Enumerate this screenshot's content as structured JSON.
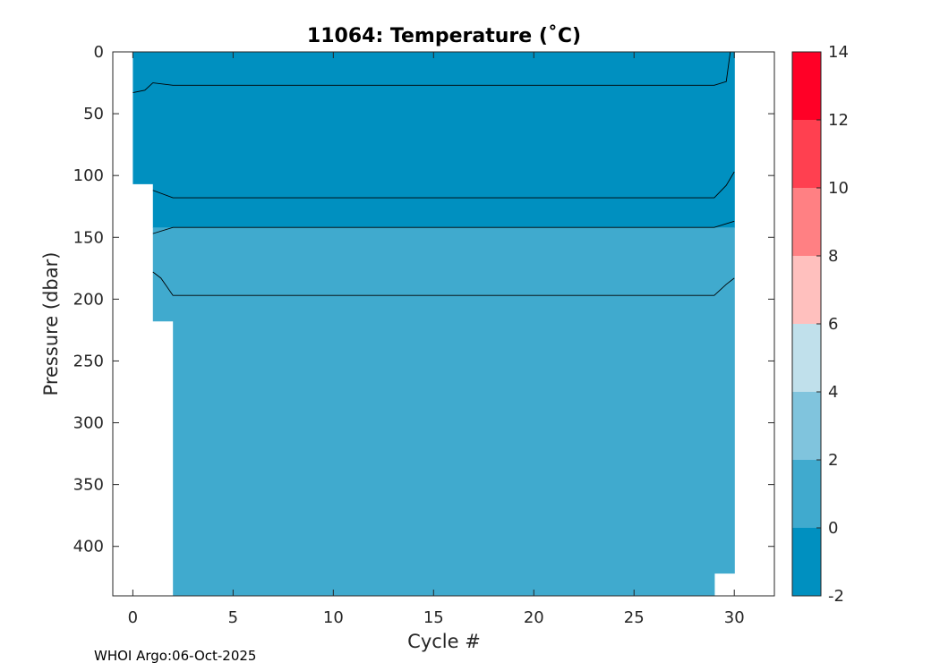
{
  "chart_data": {
    "type": "contour",
    "title": "11064:  Temperature (˚C)",
    "xlabel": "Cycle #",
    "ylabel": "Pressure (dbar)",
    "xlim": [
      -1,
      32
    ],
    "ylim": [
      440,
      0
    ],
    "xticks": [
      0,
      5,
      10,
      15,
      20,
      25,
      30
    ],
    "yticks": [
      0,
      50,
      100,
      150,
      200,
      250,
      300,
      350,
      400
    ],
    "colorbar": {
      "ticks": [
        -2,
        0,
        2,
        4,
        6,
        8,
        10,
        12,
        14
      ],
      "levels": [
        {
          "range": [
            -2,
            0
          ],
          "color": "#0090C0"
        },
        {
          "range": [
            0,
            2
          ],
          "color": "#40AACE"
        },
        {
          "range": [
            2,
            4
          ],
          "color": "#80C4DD"
        },
        {
          "range": [
            4,
            6
          ],
          "color": "#C0E0EB"
        },
        {
          "range": [
            6,
            8
          ],
          "color": "#FFC0BE"
        },
        {
          "range": [
            8,
            10
          ],
          "color": "#FF8083"
        },
        {
          "range": [
            10,
            12
          ],
          "color": "#FF4050"
        },
        {
          "range": [
            12,
            14
          ],
          "color": "#FF0026"
        }
      ]
    },
    "data_extent": [
      {
        "x": [
          0,
          1
        ],
        "pmax": 107
      },
      {
        "x": [
          1,
          2
        ],
        "pmax": 218
      },
      {
        "x": [
          2,
          29
        ],
        "pmax": 440
      },
      {
        "x": [
          29,
          30
        ],
        "pmax": 422
      }
    ],
    "regions": [
      {
        "level": "-2 to 0",
        "color": "#0090C0",
        "pressure": [
          0,
          142
        ]
      },
      {
        "level": "0 to 2",
        "color": "#40AACE",
        "pressure": [
          142,
          440
        ]
      }
    ],
    "contour_lines": [
      {
        "x": [
          0,
          0.6,
          1,
          2,
          29,
          29.6,
          29.8
        ],
        "p": [
          33,
          31,
          25,
          27,
          27,
          24,
          0
        ]
      },
      {
        "x": [
          1,
          2,
          29,
          29.6,
          30
        ],
        "p": [
          112,
          118,
          118,
          108,
          97
        ]
      },
      {
        "x": [
          1,
          2,
          29,
          30
        ],
        "p": [
          147,
          142,
          142,
          137
        ]
      },
      {
        "x": [
          1,
          1.4,
          1.7,
          2,
          29,
          29.6,
          30
        ],
        "p": [
          178,
          183,
          190,
          197,
          197,
          188,
          183
        ]
      }
    ]
  },
  "footer": {
    "credit": "WHOI Argo:06-Oct-2025"
  }
}
